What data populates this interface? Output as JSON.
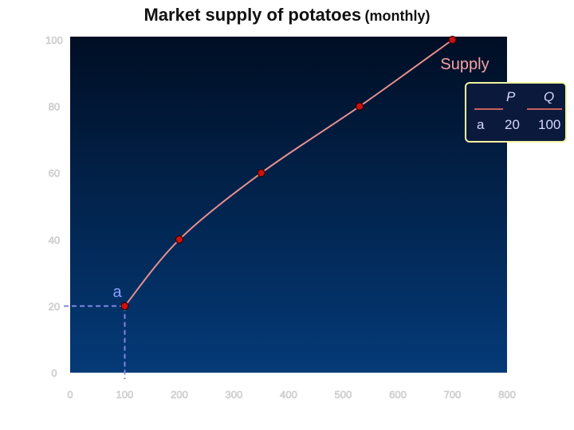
{
  "chart_data": {
    "type": "line",
    "title": "Market supply of potatoes",
    "subtitle": "(monthly)",
    "xlabel": "",
    "ylabel": "",
    "xlim": [
      0,
      800
    ],
    "ylim": [
      0,
      100
    ],
    "x_ticks": [
      "0",
      "100",
      "200",
      "300",
      "400",
      "500",
      "600",
      "700",
      "800"
    ],
    "y_ticks": [
      "0",
      "20",
      "40",
      "60",
      "80",
      "100"
    ],
    "series": [
      {
        "name": "Supply",
        "points": [
          {
            "x": 100,
            "y": 20
          },
          {
            "x": 200,
            "y": 40
          },
          {
            "x": 350,
            "y": 60
          },
          {
            "x": 530,
            "y": 80
          },
          {
            "x": 700,
            "y": 100
          }
        ]
      }
    ],
    "point_label": "a",
    "table": {
      "headers": [
        "P",
        "Q"
      ],
      "rows": [
        {
          "label": "a",
          "P": "20",
          "Q": "100"
        }
      ]
    },
    "grid": false,
    "colors": {
      "plot_top": "#000e24",
      "plot_bottom": "#043a78",
      "line": "#e89090",
      "marker_fill": "#cc1111",
      "guide": "#7f86e0"
    }
  }
}
